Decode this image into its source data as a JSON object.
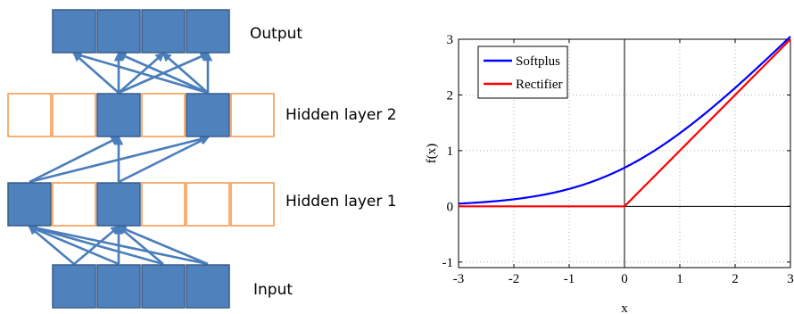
{
  "network": {
    "labels": {
      "output": "Output",
      "hidden2": "Hidden layer 2",
      "hidden1": "Hidden layer 1",
      "input": "Input"
    },
    "layers": {
      "output": {
        "units": 4,
        "active": [
          0,
          1,
          2,
          3
        ]
      },
      "hidden2": {
        "units": 6,
        "active": [
          2,
          4
        ]
      },
      "hidden1": {
        "units": 6,
        "active": [
          0,
          2
        ]
      },
      "input": {
        "units": 4,
        "active": [
          0,
          1,
          2,
          3
        ]
      }
    },
    "colors": {
      "active_fill": "#4f81bd",
      "active_border": "#385d8a",
      "inactive_border": "#f79646",
      "edge": "#4a7ebb"
    }
  },
  "chart_data": {
    "type": "line",
    "xlabel": "x",
    "ylabel": "f(x)",
    "xlim": [
      -3,
      3
    ],
    "ylim": [
      -1.1,
      3
    ],
    "xticks": [
      -3,
      -2,
      -1,
      0,
      1,
      2,
      3
    ],
    "yticks": [
      -1,
      0,
      1,
      2,
      3
    ],
    "grid": true,
    "legend_position": "top-left",
    "series": [
      {
        "name": "Softplus",
        "color": "#0000ff",
        "function": "ln(1+e^x)",
        "x": [
          -3,
          -2.5,
          -2,
          -1.5,
          -1,
          -0.5,
          0,
          0.5,
          1,
          1.5,
          2,
          2.5,
          3
        ],
        "y": [
          0.049,
          0.079,
          0.127,
          0.201,
          0.313,
          0.474,
          0.693,
          0.974,
          1.313,
          1.701,
          2.127,
          2.579,
          3.049
        ]
      },
      {
        "name": "Rectifier",
        "color": "#ff0000",
        "function": "max(0,x)",
        "x": [
          -3,
          0,
          3
        ],
        "y": [
          0,
          0,
          3
        ]
      }
    ]
  }
}
